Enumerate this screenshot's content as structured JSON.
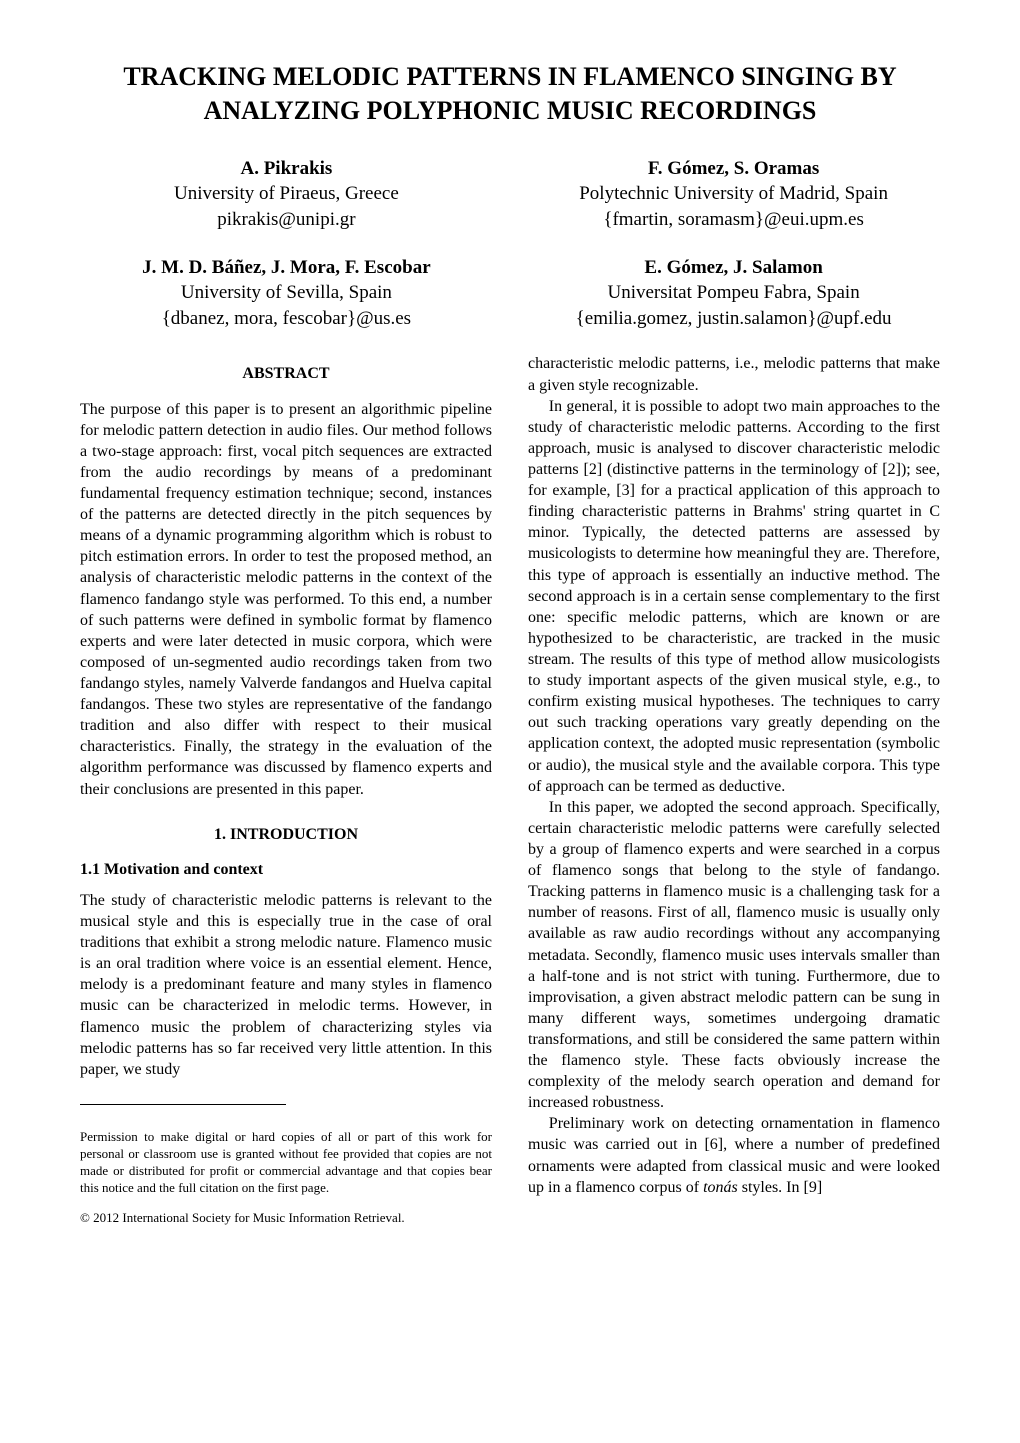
{
  "title_line1": "TRACKING MELODIC PATTERNS IN FLAMENCO SINGING BY",
  "title_line2": "ANALYZING POLYPHONIC MUSIC RECORDINGS",
  "authors": {
    "block_a": {
      "name": "A. Pikrakis",
      "affil": "University of Piraeus, Greece",
      "email": "pikrakis@unipi.gr"
    },
    "block_b": {
      "name": "F. Gómez, S. Oramas",
      "affil": "Polytechnic University of Madrid, Spain",
      "email": "{fmartin, soramasm}@eui.upm.es"
    },
    "block_c": {
      "name": "J. M. D. Báñez, J. Mora, F. Escobar",
      "affil": "University of Sevilla, Spain",
      "email": "{dbanez, mora, fescobar}@us.es"
    },
    "block_d": {
      "name": "E. Gómez, J. Salamon",
      "affil": "Universitat Pompeu Fabra, Spain",
      "email": "{emilia.gomez, justin.salamon}@upf.edu"
    }
  },
  "left": {
    "abstract_heading": "ABSTRACT",
    "abstract_body": "The purpose of this paper is to present an algorithmic pipeline for melodic pattern detection in audio files. Our method follows a two-stage approach: first, vocal pitch sequences are extracted from the audio recordings by means of a predominant fundamental frequency estimation technique; second, instances of the patterns are detected directly in the pitch sequences by means of a dynamic programming algorithm which is robust to pitch estimation errors. In order to test the proposed method, an analysis of characteristic melodic patterns in the context of the flamenco fandango style was performed. To this end, a number of such patterns were defined in symbolic format by flamenco experts and were later detected in music corpora, which were composed of un-segmented audio recordings taken from two fandango styles, namely Valverde fandangos and Huelva capital fandangos. These two styles are representative of the fandango tradition and also differ with respect to their musical characteristics. Finally, the strategy in the evaluation of the algorithm performance was discussed by flamenco experts and their conclusions are presented in this paper.",
    "intro_heading": "1. INTRODUCTION",
    "sub_heading": "1.1 Motivation and context",
    "intro_body": "The study of characteristic melodic patterns is relevant to the musical style and this is especially true in the case of oral traditions that exhibit a strong melodic nature. Flamenco music is an oral tradition where voice is an essential element. Hence, melody is a predominant feature and many styles in flamenco music can be characterized in melodic terms. However, in flamenco music the problem of characterizing styles via melodic patterns has so far received very little attention. In this paper, we study",
    "permission": "Permission to make digital or hard copies of all or part of this work for personal or classroom use is granted without fee provided that copies are not made or distributed for profit or commercial advantage and that copies bear this notice and the full citation on the first page.",
    "copyright": "© 2012 International Society for Music Information Retrieval."
  },
  "right": {
    "p1": "characteristic melodic patterns, i.e., melodic patterns that make a given style recognizable.",
    "p2": "In general, it is possible to adopt two main approaches to the study of characteristic melodic patterns. According to the first approach, music is analysed to discover characteristic melodic patterns [2] (distinctive patterns in the terminology of [2]); see, for example, [3] for a practical application of this approach to finding characteristic patterns in Brahms' string quartet in C minor. Typically, the detected patterns are assessed by musicologists to determine how meaningful they are. Therefore, this type of approach is essentially an inductive method. The second approach is in a certain sense complementary to the first one: specific melodic patterns, which are known or are hypothesized to be characteristic, are tracked in the music stream. The results of this type of method allow musicologists to study important aspects of the given musical style, e.g., to confirm existing musical hypotheses. The techniques to carry out such tracking operations vary greatly depending on the application context, the adopted music representation (symbolic or audio), the musical style and the available corpora. This type of approach can be termed as deductive.",
    "p3": "In this paper, we adopted the second approach. Specifically, certain characteristic melodic patterns were carefully selected by a group of flamenco experts and were searched in a corpus of flamenco songs that belong to the style of fandango. Tracking patterns in flamenco music is a challenging task for a number of reasons. First of all, flamenco music is usually only available as raw audio recordings without any accompanying metadata. Secondly, flamenco music uses intervals smaller than a half-tone and is not strict with tuning. Furthermore, due to improvisation, a given abstract melodic pattern can be sung in many different ways, sometimes undergoing dramatic transformations, and still be considered the same pattern within the flamenco style. These facts obviously increase the complexity of the melody search operation and demand for increased robustness.",
    "p4a": "Preliminary work on detecting ornamentation in flamenco music was carried out in [6], where a number of predefined ornaments were adapted from classical music and were looked up in a flamenco corpus of ",
    "p4_italic": "tonás",
    "p4b": " styles. In [9]"
  }
}
